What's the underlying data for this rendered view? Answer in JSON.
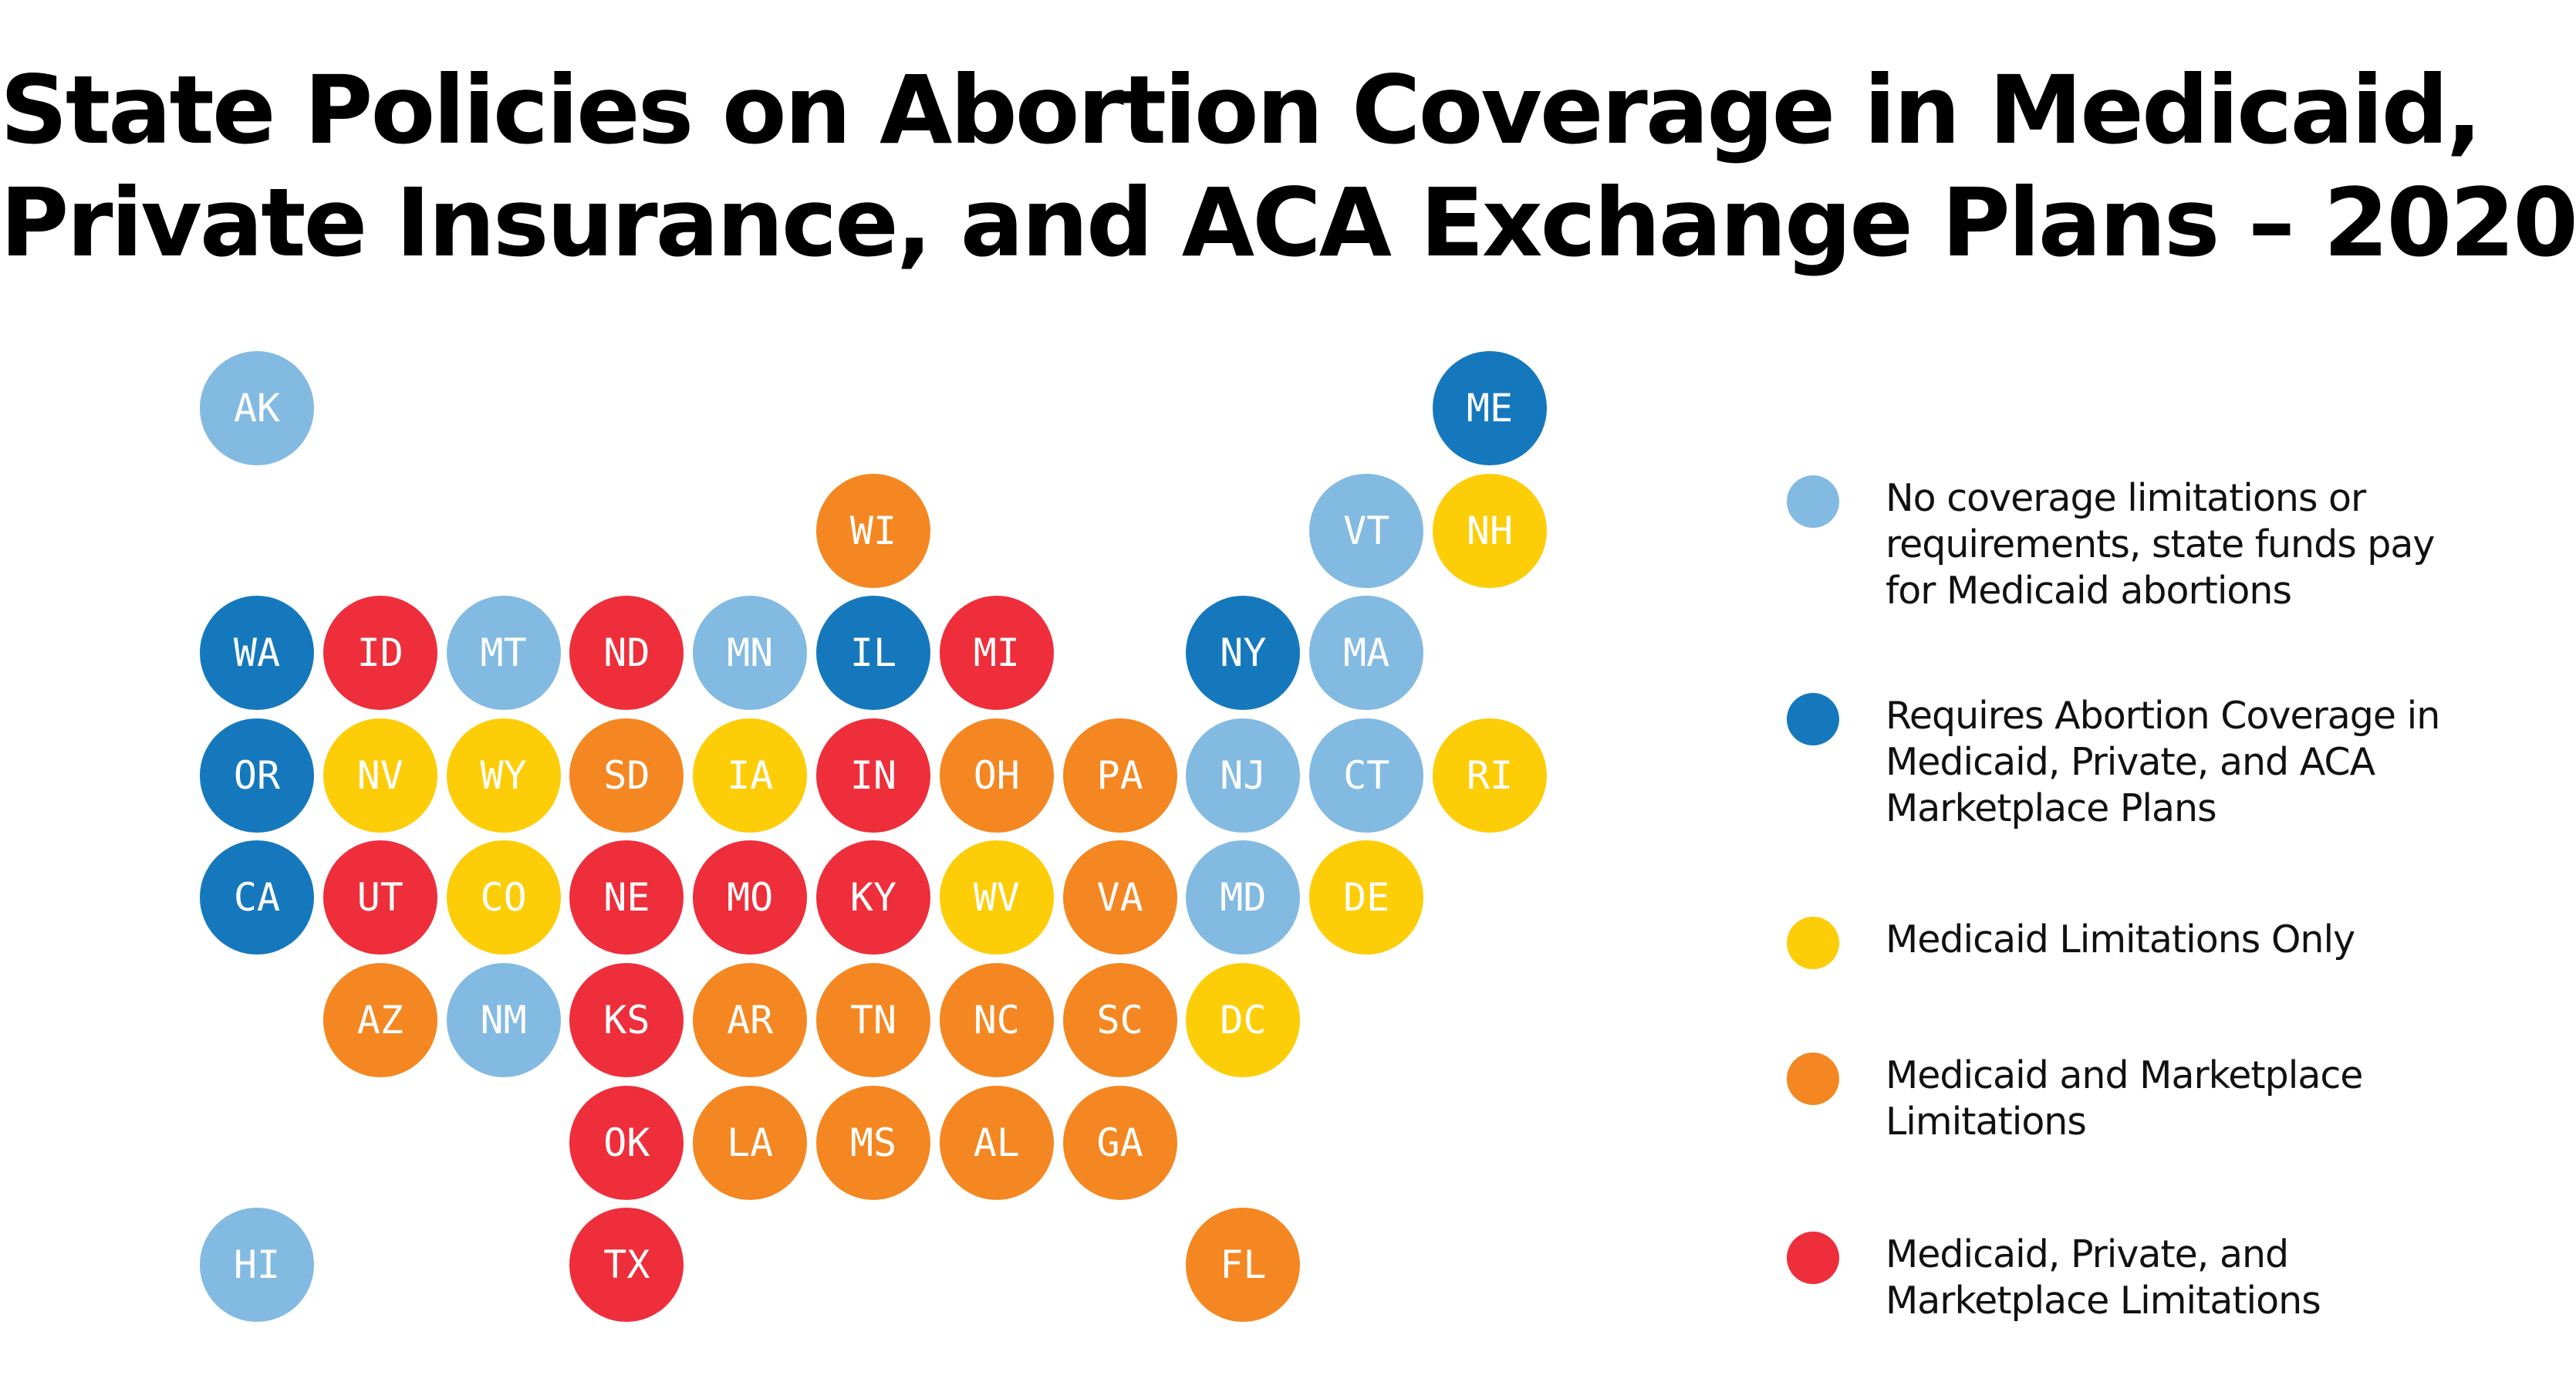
{
  "title": {
    "line1": "State Policies on Abortion Coverage in Medicaid,",
    "line2": "Private Insurance, and ACA Exchange Plans – 2020"
  },
  "categories": [
    {
      "id": "none",
      "label": "No coverage limitations or requirements, state funds pay for Medicaid abortions",
      "color": "#82BAE2"
    },
    {
      "id": "requires",
      "label": "Requires Abortion Coverage in Medicaid, Private, and ACA Marketplace Plans",
      "color": "#1578BD"
    },
    {
      "id": "medicaid",
      "label": "Medicaid Limitations Only",
      "color": "#FDCD08"
    },
    {
      "id": "medicaid-marketplace",
      "label": "Medicaid and Marketplace Limitations",
      "color": "#F48721"
    },
    {
      "id": "all",
      "label": "Medicaid, Private, and Marketplace Limitations",
      "color": "#EE2E3A"
    }
  ],
  "states": [
    {
      "code": "AK",
      "category": "none"
    },
    {
      "code": "ME",
      "category": "requires"
    },
    {
      "code": "WI",
      "category": "medicaid-marketplace"
    },
    {
      "code": "VT",
      "category": "none"
    },
    {
      "code": "NH",
      "category": "medicaid"
    },
    {
      "code": "WA",
      "category": "requires"
    },
    {
      "code": "ID",
      "category": "all"
    },
    {
      "code": "MT",
      "category": "none"
    },
    {
      "code": "ND",
      "category": "all"
    },
    {
      "code": "MN",
      "category": "none"
    },
    {
      "code": "IL",
      "category": "requires"
    },
    {
      "code": "MI",
      "category": "all"
    },
    {
      "code": "NY",
      "category": "requires"
    },
    {
      "code": "MA",
      "category": "none"
    },
    {
      "code": "OR",
      "category": "requires"
    },
    {
      "code": "NV",
      "category": "medicaid"
    },
    {
      "code": "WY",
      "category": "medicaid"
    },
    {
      "code": "SD",
      "category": "medicaid-marketplace"
    },
    {
      "code": "IA",
      "category": "medicaid"
    },
    {
      "code": "IN",
      "category": "all"
    },
    {
      "code": "OH",
      "category": "medicaid-marketplace"
    },
    {
      "code": "PA",
      "category": "medicaid-marketplace"
    },
    {
      "code": "NJ",
      "category": "none"
    },
    {
      "code": "CT",
      "category": "none"
    },
    {
      "code": "RI",
      "category": "medicaid"
    },
    {
      "code": "CA",
      "category": "requires"
    },
    {
      "code": "UT",
      "category": "all"
    },
    {
      "code": "CO",
      "category": "medicaid"
    },
    {
      "code": "NE",
      "category": "all"
    },
    {
      "code": "MO",
      "category": "all"
    },
    {
      "code": "KY",
      "category": "all"
    },
    {
      "code": "WV",
      "category": "medicaid"
    },
    {
      "code": "VA",
      "category": "medicaid-marketplace"
    },
    {
      "code": "MD",
      "category": "none"
    },
    {
      "code": "DE",
      "category": "medicaid"
    },
    {
      "code": "AZ",
      "category": "medicaid-marketplace"
    },
    {
      "code": "NM",
      "category": "none"
    },
    {
      "code": "KS",
      "category": "all"
    },
    {
      "code": "AR",
      "category": "medicaid-marketplace"
    },
    {
      "code": "TN",
      "category": "medicaid-marketplace"
    },
    {
      "code": "NC",
      "category": "medicaid-marketplace"
    },
    {
      "code": "SC",
      "category": "medicaid-marketplace"
    },
    {
      "code": "DC",
      "category": "medicaid"
    },
    {
      "code": "OK",
      "category": "all"
    },
    {
      "code": "LA",
      "category": "medicaid-marketplace"
    },
    {
      "code": "MS",
      "category": "medicaid-marketplace"
    },
    {
      "code": "AL",
      "category": "medicaid-marketplace"
    },
    {
      "code": "GA",
      "category": "medicaid-marketplace"
    },
    {
      "code": "HI",
      "category": "none"
    },
    {
      "code": "TX",
      "category": "all"
    },
    {
      "code": "FL",
      "category": "medicaid-marketplace"
    }
  ]
}
